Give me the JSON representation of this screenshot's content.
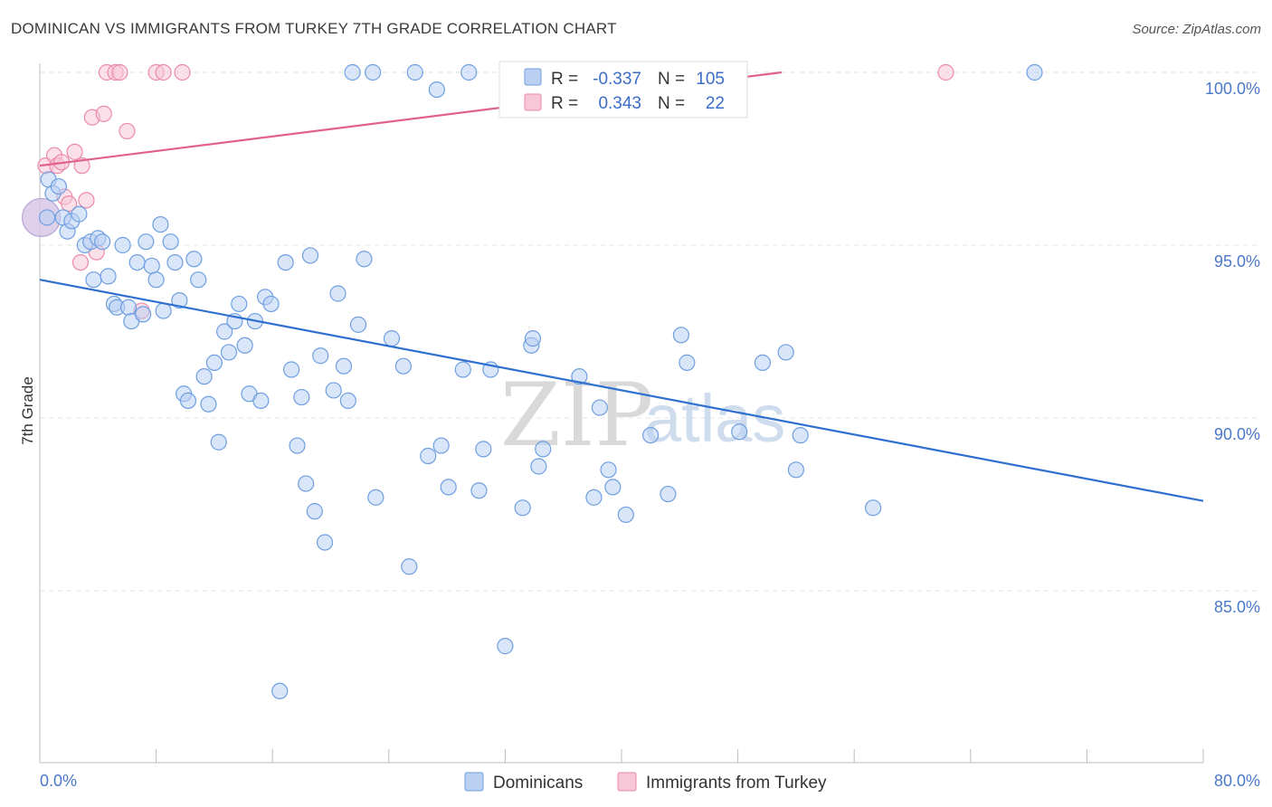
{
  "title": "DOMINICAN VS IMMIGRANTS FROM TURKEY 7TH GRADE CORRELATION CHART",
  "source": "Source: ZipAtlas.com",
  "watermark": {
    "zip": "ZIP",
    "atlas": "atlas"
  },
  "colors": {
    "blue": "#6f9fe0",
    "blue_fill": "#b9d0f3",
    "blue_line": "#2f6fcf",
    "pink": "#ec8aab",
    "pink_fill": "#f8c7d7",
    "pink_line": "#e0618a",
    "tick": "#4a78c8",
    "grid": "#e3e3e3"
  },
  "stats": [
    {
      "r_label": "R =",
      "r_value": "-0.337",
      "n_label": "N =",
      "n_value": "105",
      "series": "blue"
    },
    {
      "r_label": "R =",
      "r_value": "0.343",
      "n_label": "N =",
      "n_value": "22",
      "series": "pink"
    }
  ],
  "legend": [
    "Dominicans",
    "Immigrants from Turkey"
  ],
  "chart_data": {
    "type": "scatter",
    "xlabel": "",
    "ylabel": "7th Grade",
    "xlim": [
      0,
      80
    ],
    "ylim": [
      80.5,
      100.8
    ],
    "x_tick_labels": [
      "0.0%",
      "80.0%"
    ],
    "y_ticks": [
      100,
      95,
      90,
      85
    ],
    "y_tick_labels": [
      "100.0%",
      "95.0%",
      "90.0%",
      "85.0%"
    ],
    "grid": "horizontal dashed",
    "legend_position": "bottom-center",
    "series": [
      {
        "name": "Dominicans",
        "color": "blue",
        "trend": {
          "x": [
            0,
            80
          ],
          "y": [
            94.0,
            87.6
          ]
        },
        "points": [
          [
            0.5,
            95.8
          ],
          [
            0.6,
            96.9
          ],
          [
            0.9,
            96.5
          ],
          [
            1.3,
            96.7
          ],
          [
            1.6,
            95.8
          ],
          [
            1.9,
            95.4
          ],
          [
            2.2,
            95.7
          ],
          [
            2.7,
            95.9
          ],
          [
            3.1,
            95.0
          ],
          [
            3.5,
            95.1
          ],
          [
            3.7,
            94.0
          ],
          [
            4.0,
            95.2
          ],
          [
            4.3,
            95.1
          ],
          [
            4.7,
            94.1
          ],
          [
            5.1,
            93.3
          ],
          [
            5.3,
            93.2
          ],
          [
            5.7,
            95.0
          ],
          [
            6.1,
            93.2
          ],
          [
            6.3,
            92.8
          ],
          [
            6.7,
            94.5
          ],
          [
            7.1,
            93.0
          ],
          [
            7.3,
            95.1
          ],
          [
            7.7,
            94.4
          ],
          [
            8.0,
            94.0
          ],
          [
            8.3,
            95.6
          ],
          [
            8.5,
            93.1
          ],
          [
            9.0,
            95.1
          ],
          [
            9.3,
            94.5
          ],
          [
            9.6,
            93.4
          ],
          [
            9.9,
            90.7
          ],
          [
            10.2,
            90.5
          ],
          [
            10.6,
            94.6
          ],
          [
            10.9,
            94.0
          ],
          [
            11.3,
            91.2
          ],
          [
            11.6,
            90.4
          ],
          [
            12.0,
            91.6
          ],
          [
            12.3,
            89.3
          ],
          [
            12.7,
            92.5
          ],
          [
            13.0,
            91.9
          ],
          [
            13.4,
            92.8
          ],
          [
            13.7,
            93.3
          ],
          [
            14.1,
            92.1
          ],
          [
            14.4,
            90.7
          ],
          [
            14.8,
            92.8
          ],
          [
            15.2,
            90.5
          ],
          [
            15.5,
            93.5
          ],
          [
            15.9,
            93.3
          ],
          [
            16.5,
            82.1
          ],
          [
            16.9,
            94.5
          ],
          [
            17.3,
            91.4
          ],
          [
            17.7,
            89.2
          ],
          [
            18.0,
            90.6
          ],
          [
            18.3,
            88.1
          ],
          [
            18.6,
            94.7
          ],
          [
            18.9,
            87.3
          ],
          [
            19.3,
            91.8
          ],
          [
            19.6,
            86.4
          ],
          [
            20.2,
            90.8
          ],
          [
            20.5,
            93.6
          ],
          [
            20.9,
            91.5
          ],
          [
            21.2,
            90.5
          ],
          [
            21.5,
            100.0
          ],
          [
            21.9,
            92.7
          ],
          [
            22.3,
            94.6
          ],
          [
            22.9,
            100.0
          ],
          [
            23.1,
            87.7
          ],
          [
            24.2,
            92.3
          ],
          [
            25.0,
            91.5
          ],
          [
            25.4,
            85.7
          ],
          [
            25.8,
            100.0
          ],
          [
            26.7,
            88.9
          ],
          [
            27.3,
            99.5
          ],
          [
            27.6,
            89.2
          ],
          [
            28.1,
            88.0
          ],
          [
            29.1,
            91.4
          ],
          [
            29.5,
            100.0
          ],
          [
            30.2,
            87.9
          ],
          [
            30.5,
            89.1
          ],
          [
            31.0,
            91.4
          ],
          [
            32.0,
            83.4
          ],
          [
            33.2,
            87.4
          ],
          [
            33.8,
            92.1
          ],
          [
            33.9,
            92.3
          ],
          [
            34.3,
            88.6
          ],
          [
            34.6,
            89.1
          ],
          [
            35.1,
            100.0
          ],
          [
            37.1,
            91.2
          ],
          [
            38.1,
            87.7
          ],
          [
            38.5,
            90.3
          ],
          [
            39.1,
            88.5
          ],
          [
            39.4,
            88.0
          ],
          [
            40.3,
            87.2
          ],
          [
            42.0,
            89.5
          ],
          [
            43.2,
            87.8
          ],
          [
            44.1,
            92.4
          ],
          [
            44.5,
            91.6
          ],
          [
            48.1,
            89.6
          ],
          [
            49.7,
            91.6
          ],
          [
            51.3,
            91.9
          ],
          [
            52.0,
            88.5
          ],
          [
            52.3,
            89.5
          ],
          [
            57.3,
            87.4
          ],
          [
            68.4,
            100.0
          ]
        ]
      },
      {
        "name": "Immigrants from Turkey",
        "color": "pink",
        "trend": {
          "x": [
            0,
            51
          ],
          "y": [
            97.3,
            100.0
          ]
        },
        "points": [
          [
            0.4,
            97.3
          ],
          [
            1.0,
            97.6
          ],
          [
            1.2,
            97.3
          ],
          [
            1.5,
            97.4
          ],
          [
            1.7,
            96.4
          ],
          [
            2.0,
            96.2
          ],
          [
            2.4,
            97.7
          ],
          [
            2.8,
            94.5
          ],
          [
            2.9,
            97.3
          ],
          [
            3.2,
            96.3
          ],
          [
            3.6,
            98.7
          ],
          [
            3.9,
            94.8
          ],
          [
            4.4,
            98.8
          ],
          [
            4.6,
            100.0
          ],
          [
            5.2,
            100.0
          ],
          [
            5.5,
            100.0
          ],
          [
            6.0,
            98.3
          ],
          [
            7.0,
            93.1
          ],
          [
            8.0,
            100.0
          ],
          [
            8.5,
            100.0
          ],
          [
            9.8,
            100.0
          ],
          [
            62.3,
            100.0
          ]
        ],
        "large_point": [
          0.1,
          95.8
        ]
      }
    ]
  }
}
